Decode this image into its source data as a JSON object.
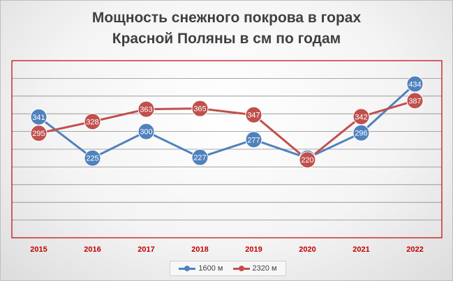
{
  "chart_data": {
    "type": "line",
    "title": [
      "Мощность снежного покрова в горах",
      "Красной Поляны в см по годам"
    ],
    "categories": [
      "2015",
      "2016",
      "2017",
      "2018",
      "2019",
      "2020",
      "2021",
      "2022"
    ],
    "series": [
      {
        "name": "1600 м",
        "color": "#4f81bd",
        "values": [
          341,
          225,
          300,
          227,
          277,
          225,
          296,
          434
        ]
      },
      {
        "name": "2320 м",
        "color": "#c0504d",
        "values": [
          295,
          328,
          363,
          365,
          347,
          220,
          342,
          387
        ]
      }
    ],
    "ylim": [
      0,
      500
    ],
    "grid": true,
    "legend": "bottom",
    "plot_border_color": "#c00000",
    "tick_label_color": "#c00000"
  }
}
